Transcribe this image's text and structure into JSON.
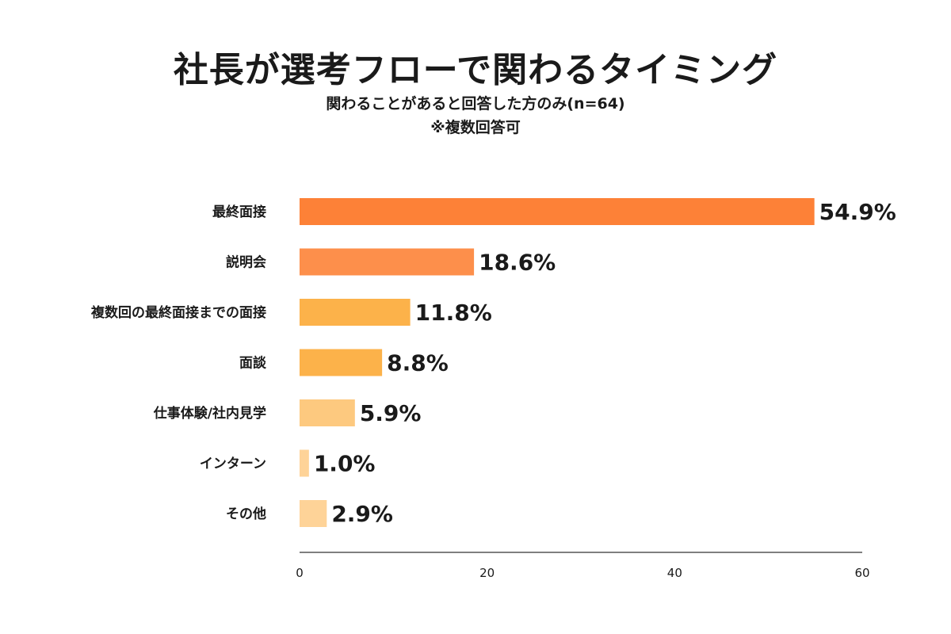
{
  "chart_data": {
    "type": "bar",
    "orientation": "horizontal",
    "title": "社長が選考フローで関わるタイミング",
    "subtitle": "関わることがあると回答した方のみ(n=64)",
    "note": "※複数回答可",
    "categories": [
      "最終面接",
      "説明会",
      "複数回の最終面接までの面接",
      "面談",
      "仕事体験/社内見学",
      "インターン",
      "その他"
    ],
    "values": [
      54.9,
      18.6,
      11.8,
      8.8,
      5.9,
      1.0,
      2.9
    ],
    "value_labels": [
      "54.9%",
      "18.6%",
      "11.8%",
      "8.8%",
      "5.9%",
      "1.0%",
      "2.9%"
    ],
    "bar_colors": [
      "#fd8137",
      "#fd8f4b",
      "#fcb24a",
      "#fcb24a",
      "#fdc97f",
      "#fed398",
      "#fed398"
    ],
    "xlim": [
      0,
      60
    ],
    "x_ticks": [
      0,
      20,
      40,
      60
    ],
    "grid": false,
    "legend": "none"
  }
}
